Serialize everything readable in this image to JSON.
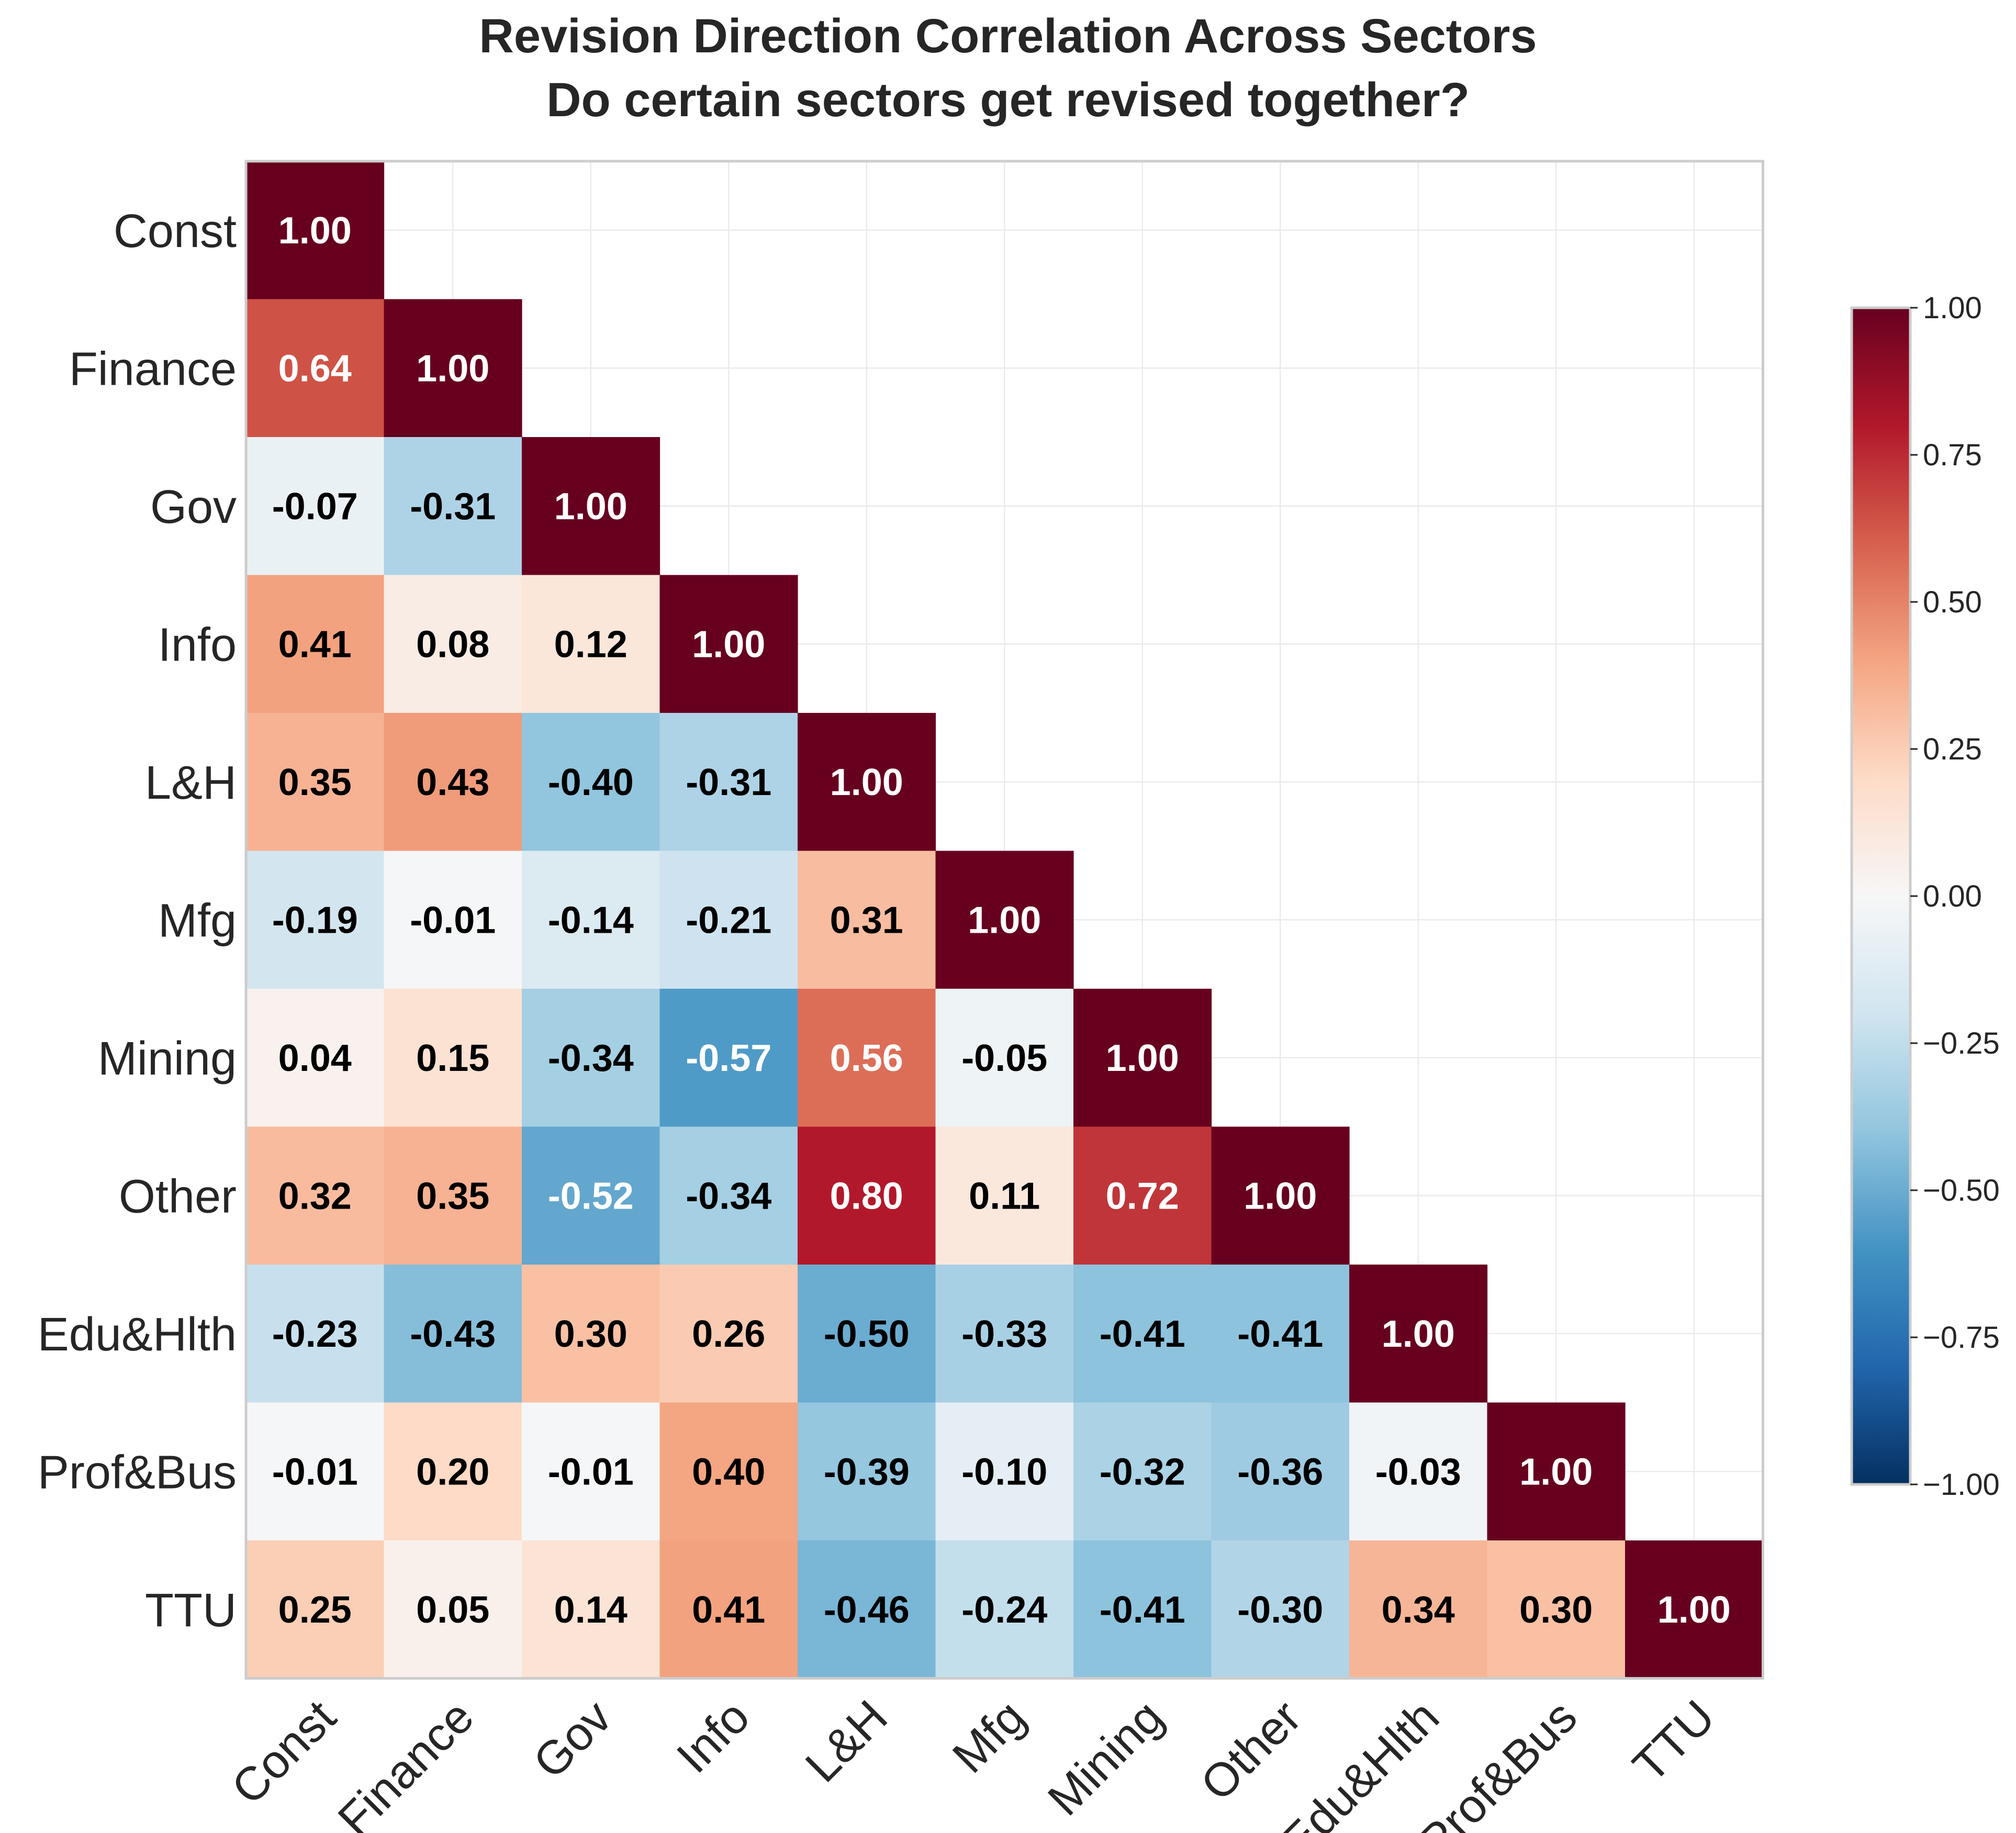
{
  "chart_data": {
    "type": "heatmap",
    "title": "Revision Direction Correlation Across Sectors",
    "subtitle": "Do certain sectors get revised together?",
    "labels": [
      "Const",
      "Finance",
      "Gov",
      "Info",
      "L&H",
      "Mfg",
      "Mining",
      "Other",
      "Edu&Hlth",
      "Prof&Bus",
      "TTU"
    ],
    "matrix": [
      [
        1.0
      ],
      [
        0.64,
        1.0
      ],
      [
        -0.07,
        -0.31,
        1.0
      ],
      [
        0.41,
        0.08,
        0.12,
        1.0
      ],
      [
        0.35,
        0.43,
        -0.4,
        -0.31,
        1.0
      ],
      [
        -0.19,
        -0.01,
        -0.14,
        -0.21,
        0.31,
        1.0
      ],
      [
        0.04,
        0.15,
        -0.34,
        -0.57,
        0.56,
        -0.05,
        1.0
      ],
      [
        0.32,
        0.35,
        -0.52,
        -0.34,
        0.8,
        0.11,
        0.72,
        1.0
      ],
      [
        -0.23,
        -0.43,
        0.3,
        0.26,
        -0.5,
        -0.33,
        -0.41,
        -0.41,
        1.0
      ],
      [
        -0.01,
        0.2,
        -0.01,
        0.4,
        -0.39,
        -0.1,
        -0.32,
        -0.36,
        -0.03,
        1.0
      ],
      [
        0.25,
        0.05,
        0.14,
        0.41,
        -0.46,
        -0.24,
        -0.41,
        -0.3,
        0.34,
        0.3,
        1.0
      ]
    ],
    "lower_triangle_only": true,
    "value_format": "2 decimals",
    "colormap": "RdBu_r",
    "vmin": -1.0,
    "vmax": 1.0,
    "colorbar_ticks": [
      "1.00",
      "0.75",
      "0.50",
      "0.25",
      "0.00",
      "−0.25",
      "−0.50",
      "−0.75",
      "−1.00"
    ],
    "colorbar_tick_values": [
      1.0,
      0.75,
      0.5,
      0.25,
      0.0,
      -0.25,
      -0.5,
      -0.75,
      -1.0
    ],
    "grid": true,
    "legend": "colorbar-right"
  }
}
